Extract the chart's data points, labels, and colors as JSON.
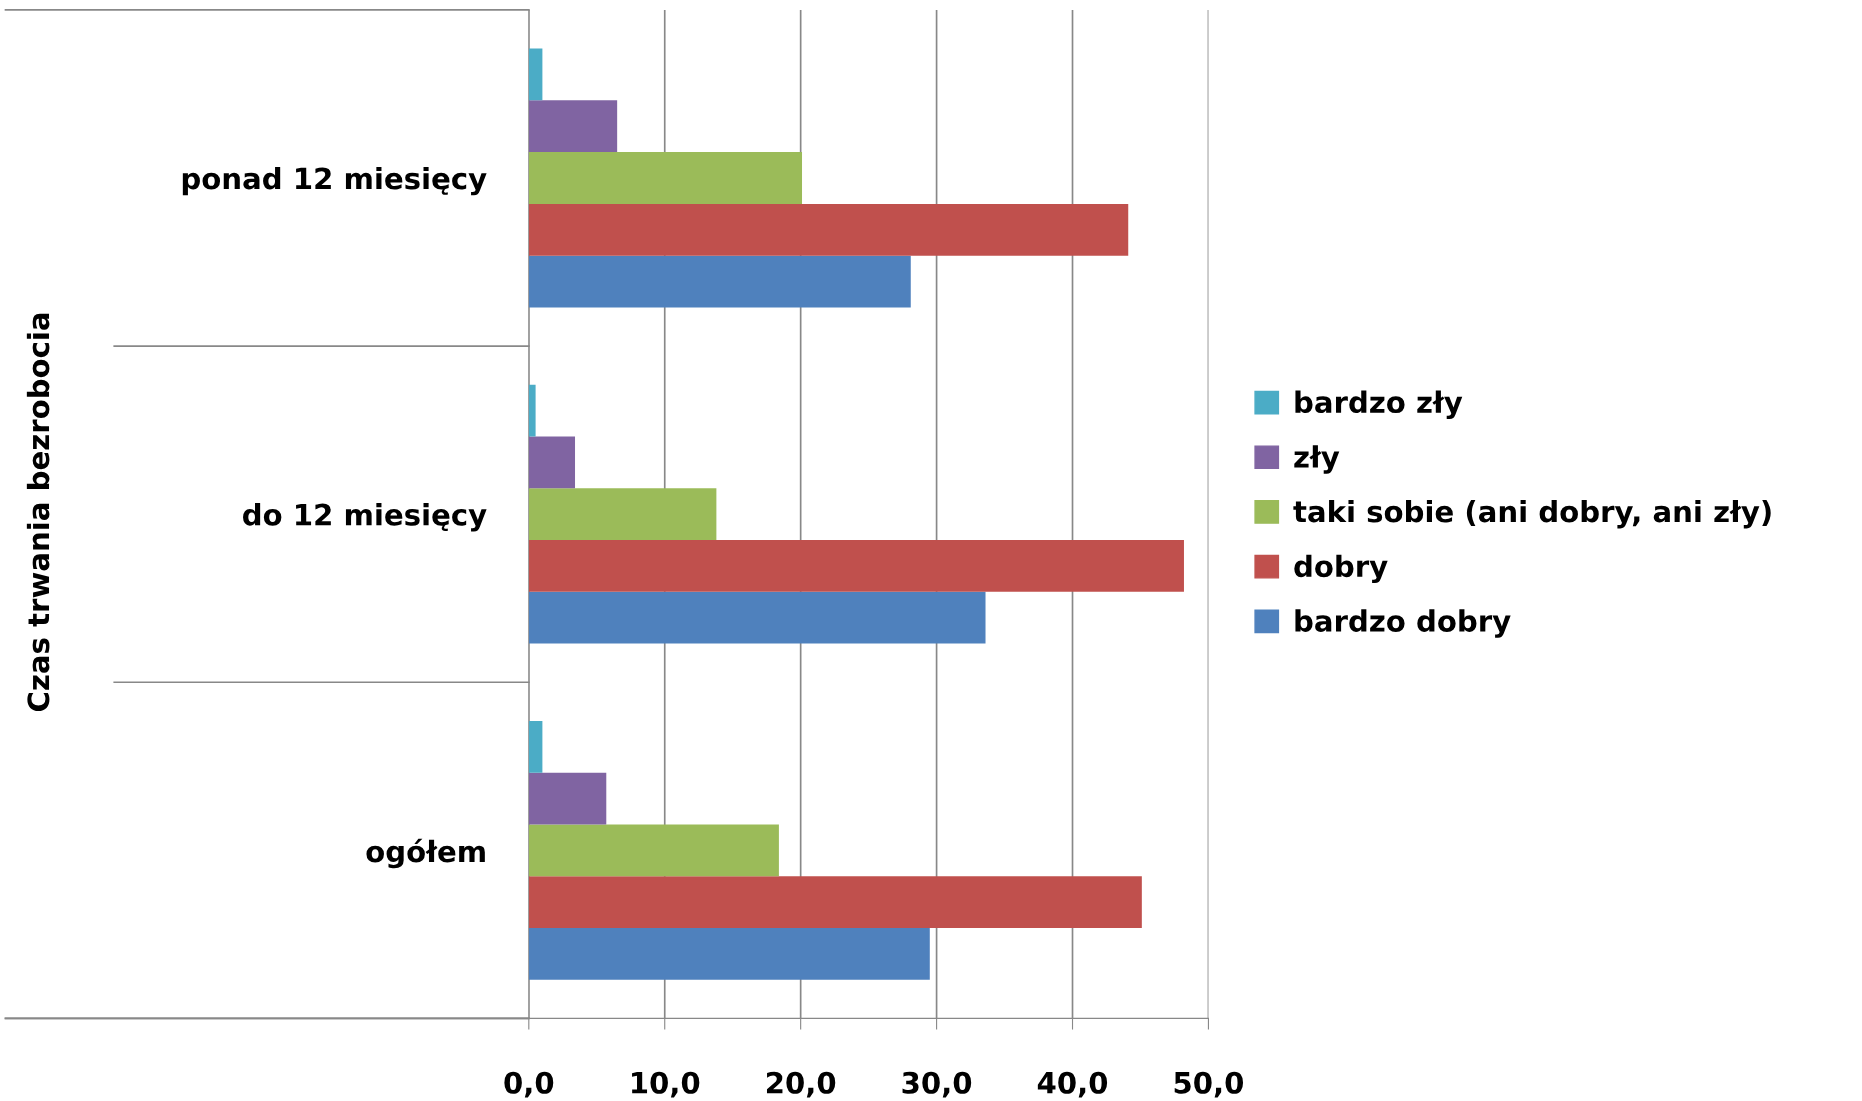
{
  "chart_data": {
    "type": "bar",
    "orientation": "horizontal",
    "ylabel": "Czas trwania bezrobocia",
    "categories": [
      "ponad 12 miesięcy",
      "do 12 miesięcy",
      "ogółem"
    ],
    "series": [
      {
        "name": "bardzo dobry",
        "color": "#4f81bd",
        "values": [
          28.1,
          33.6,
          29.5
        ]
      },
      {
        "name": "dobry",
        "color": "#c0504d",
        "values": [
          44.1,
          48.2,
          45.1
        ]
      },
      {
        "name": "taki sobie (ani dobry, ani zły)",
        "color": "#9bbb59",
        "values": [
          20.1,
          13.8,
          18.4
        ]
      },
      {
        "name": "zły",
        "color": "#8064a2",
        "values": [
          6.5,
          3.4,
          5.7
        ]
      },
      {
        "name": "bardzo zły",
        "color": "#4bacc6",
        "values": [
          1.0,
          0.5,
          1.0
        ]
      }
    ],
    "xlim": [
      0,
      50
    ],
    "xticks": [
      {
        "value": 0,
        "label": "0,0"
      },
      {
        "value": 10,
        "label": "10,0"
      },
      {
        "value": 20,
        "label": "20,0"
      },
      {
        "value": 30,
        "label": "30,0"
      },
      {
        "value": 40,
        "label": "40,0"
      },
      {
        "value": 50,
        "label": "50,0"
      }
    ],
    "grid": "x",
    "legend": "right"
  }
}
